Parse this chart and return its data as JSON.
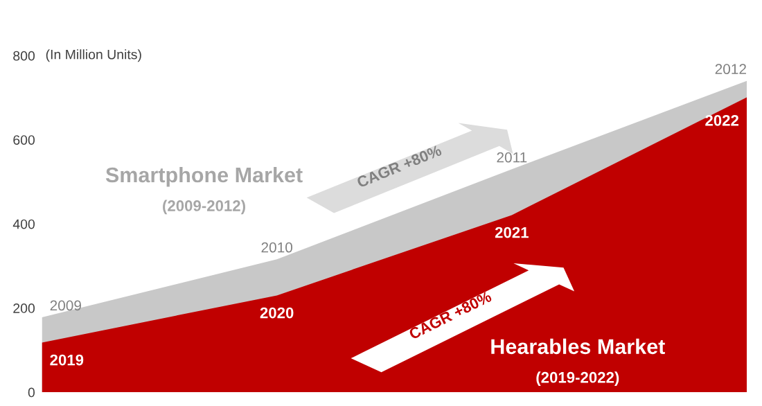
{
  "chart_data": {
    "type": "area",
    "ylabel": "(In Million Units)",
    "categories": [
      null,
      null,
      null,
      null
    ],
    "series": [
      {
        "name": "Smartphone Market",
        "color": "#c8c8c8",
        "values": [
          178,
          316,
          530,
          740
        ]
      },
      {
        "name": "Hearables Market",
        "color": "#c00000",
        "values": [
          118,
          230,
          421,
          701
        ]
      }
    ],
    "annotations": [
      "(2009-2012)",
      "(2019-2022)",
      "CAGR +80%",
      "CAGR +80%",
      {
        "text": "2009",
        "y": 178
      },
      {
        "text": "2010",
        "y": 316
      },
      {
        "text": "2011",
        "y": 530
      },
      {
        "text": "2012",
        "y": 740
      },
      {
        "text": "2019",
        "y": 118
      },
      {
        "text": "2020",
        "y": 230
      },
      {
        "text": "2021",
        "y": 421
      },
      {
        "text": "2022",
        "y": 701
      }
    ],
    "ylim": [
      0,
      800
    ],
    "yticks": [
      0,
      200,
      400,
      600,
      800
    ],
    "tick_labels": "y",
    "grid": false,
    "legend": false
  }
}
